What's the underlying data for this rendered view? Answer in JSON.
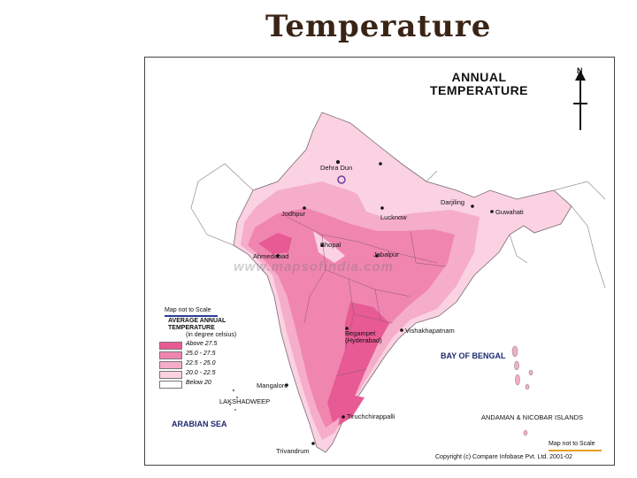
{
  "slide": {
    "title": "Temperature"
  },
  "map": {
    "heading_line1": "ANNUAL",
    "heading_line2": "TEMPERATURE",
    "north_label": "N",
    "watermark": "www.mapsofindia.com",
    "scale_note_left": "Map not to Scale",
    "scale_note_right": "Map not to Scale",
    "copyright": "Copyright (c) Compare Infobase Pvt. Ltd. 2001-02",
    "seas": {
      "arabian": "ARABIAN SEA",
      "bengal": "BAY OF BENGAL"
    },
    "islands": {
      "andaman": "ANDAMAN & NICOBAR ISLANDS",
      "lakshadweep": "LAKSHADWEEP"
    },
    "cities": [
      {
        "key": "dehra-dun",
        "name": "Dehra Dun"
      },
      {
        "key": "darjiling",
        "name": "Darjiling"
      },
      {
        "key": "guwahati",
        "name": "Guwahati"
      },
      {
        "key": "jodhpur",
        "name": "Jodhpur"
      },
      {
        "key": "lucknow",
        "name": "Lucknow"
      },
      {
        "key": "bhopal",
        "name": "Bhopal"
      },
      {
        "key": "ahmedabad",
        "name": "Ahmedabad"
      },
      {
        "key": "jabalpur",
        "name": "Jabalpur"
      },
      {
        "key": "begampet",
        "name": "Begampet"
      },
      {
        "key": "hyderabad",
        "name": "(Hyderabad)"
      },
      {
        "key": "vishakhapatnam",
        "name": "Vishakhapatnam"
      },
      {
        "key": "mangalore",
        "name": "Mangalore"
      },
      {
        "key": "tiruchchirappalli",
        "name": "Tiruchchirappalli"
      },
      {
        "key": "trivandrum",
        "name": "Trivandrum"
      }
    ],
    "legend": {
      "title_line1": "AVERAGE ANNUAL",
      "title_line2": "TEMPERATURE",
      "unit": "(in degree celsius)",
      "items": [
        {
          "label": "Above 27.5",
          "color": "#e75a93"
        },
        {
          "label": "25.0 - 27.5",
          "color": "#f085b0"
        },
        {
          "label": "22.5 - 25.0",
          "color": "#f5adc9"
        },
        {
          "label": "20.0 - 22.5",
          "color": "#fad2e2"
        },
        {
          "label": "Below 20",
          "color": "#ffffff"
        }
      ]
    }
  }
}
